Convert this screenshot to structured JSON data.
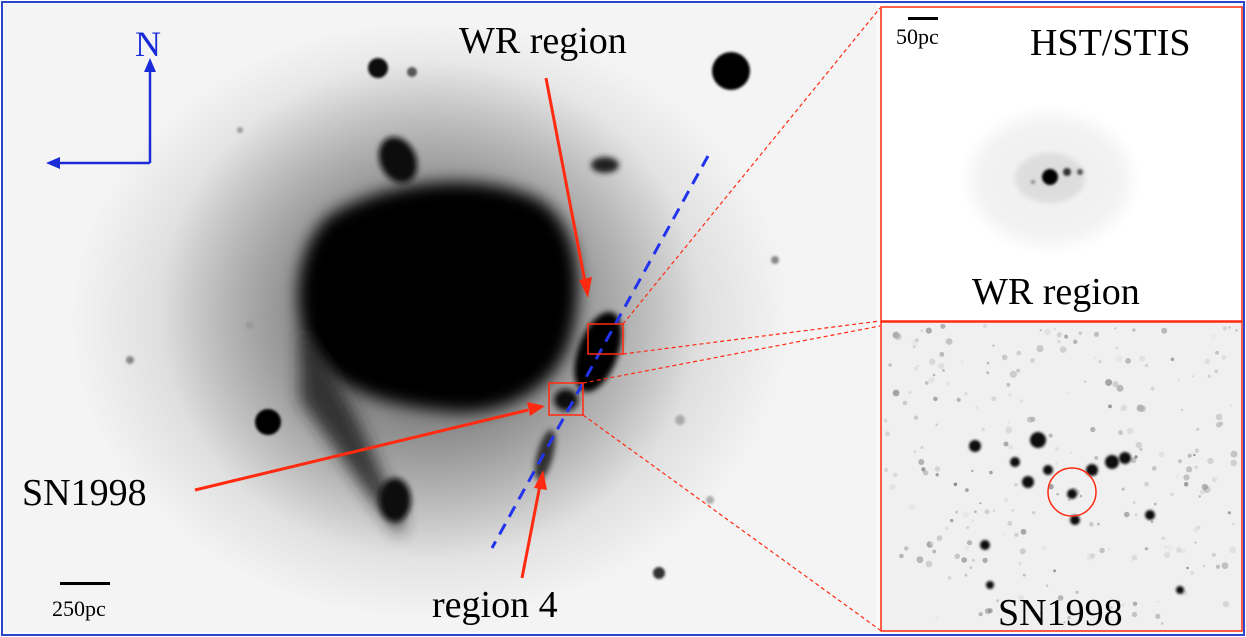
{
  "main_image": {
    "labels": {
      "north": "N",
      "wr_region": "WR region",
      "sn1998": "SN1998",
      "region4": "region 4"
    },
    "scale_label": "250pc"
  },
  "inset_top": {
    "scale_label": "50pc",
    "instrument": "HST/STIS",
    "caption": "WR region"
  },
  "inset_bottom": {
    "caption": "SN1998"
  },
  "colors": {
    "frame_blue": "#2b46c8",
    "annotation_red": "#ff2a10",
    "slit_blue": "#2233ee",
    "compass_blue": "#1a2bd8"
  }
}
